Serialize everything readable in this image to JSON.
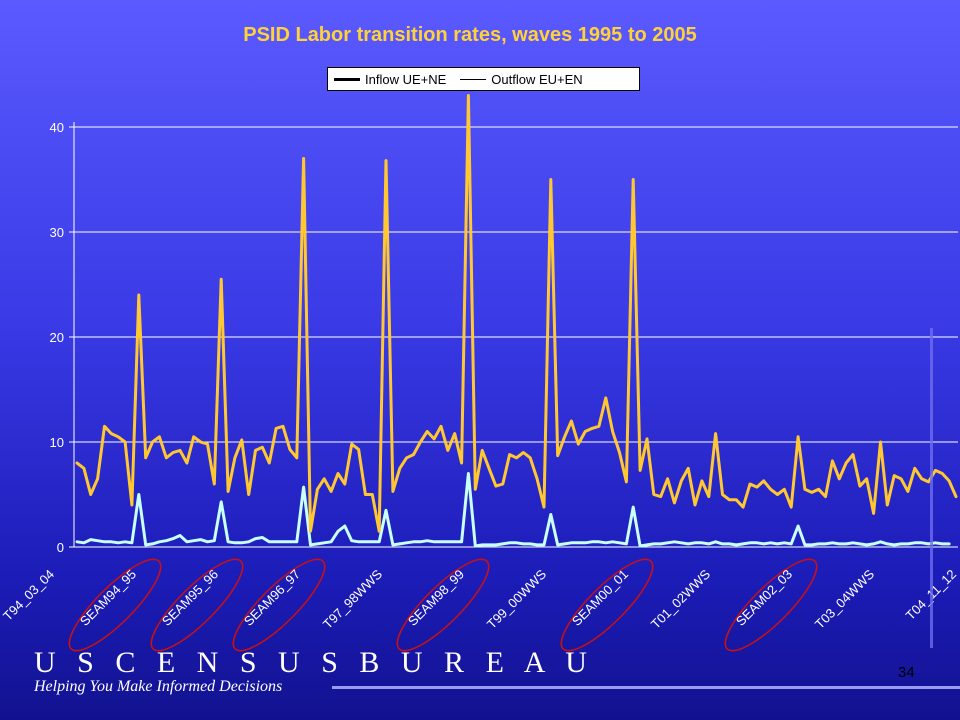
{
  "slide": {
    "logo": "U S C E N S U S B U R E A U",
    "tagline": "Helping You Make Informed Decisions",
    "page_number": "34"
  },
  "colors": {
    "inflow": "#ffc832",
    "outflow": "#c8ffff",
    "grid": "#ffffff",
    "title": "#ffd23a",
    "highlight_ellipse": "#cc1010"
  },
  "chart_data": {
    "type": "line",
    "title": "PSID Labor transition rates, waves 1995 to 2005",
    "xlabel": "",
    "ylabel": "",
    "ylim": [
      0,
      40
    ],
    "yticks": [
      0,
      10,
      20,
      30,
      40
    ],
    "grid": true,
    "legend_position": "top-center",
    "x_tick_labels": [
      "T94_03_04",
      "SEAM94_95",
      "SEAM95_96",
      "SEAM96_97",
      "T97_98WWS",
      "SEAM98_99",
      "T99_00WWS",
      "SEAM00_01",
      "T01_02WWS",
      "SEAM02_03",
      "T03_04WWS",
      "T04_11_12"
    ],
    "highlighted_labels": [
      "SEAM94_95",
      "SEAM95_96",
      "SEAM96_97",
      "SEAM98_99",
      "SEAM00_01",
      "SEAM02_03"
    ],
    "series": [
      {
        "name": "Inflow UE+NE",
        "values": [
          8,
          7.5,
          5,
          6.5,
          11.5,
          10.8,
          10.5,
          10,
          4,
          24,
          8.5,
          10,
          10.5,
          8.5,
          9,
          9.2,
          8,
          10.5,
          10,
          9.8,
          6,
          25.5,
          5.3,
          8.5,
          10.2,
          5,
          9.2,
          9.5,
          8,
          11.3,
          11.5,
          9.3,
          8.5,
          37,
          1.5,
          5.5,
          6.5,
          5.3,
          7,
          6,
          9.8,
          9.3,
          5,
          5,
          1.5,
          36.8,
          5.3,
          7.5,
          8.5,
          8.8,
          10,
          11,
          10.3,
          11.5,
          9.2,
          10.8,
          8,
          43,
          5.5,
          9.2,
          7.5,
          5.8,
          6,
          8.8,
          8.5,
          9,
          8.5,
          6.5,
          3.8,
          35,
          8.7,
          10.5,
          12,
          9.8,
          11,
          11.3,
          11.5,
          14.2,
          11,
          9,
          6.2,
          35,
          7.3,
          10.3,
          5,
          4.8,
          6.5,
          4.2,
          6.3,
          7.5,
          4,
          6.3,
          4.8,
          10.8,
          5,
          4.5,
          4.5,
          3.8,
          6,
          5.7,
          6.3,
          5.5,
          5,
          5.5,
          3.8,
          10.5,
          5.5,
          5.2,
          5.5,
          4.8,
          8.2,
          6.5,
          8,
          8.8,
          5.8,
          6.5,
          3.2,
          10,
          4,
          6.8,
          6.5,
          5.3,
          7.5,
          6.5,
          6.2,
          7.3,
          7,
          6.3,
          4.8
        ],
        "color": "#ffc832"
      },
      {
        "name": "Outflow EU+EN",
        "values": [
          0.5,
          0.4,
          0.7,
          0.6,
          0.5,
          0.5,
          0.4,
          0.5,
          0.4,
          5,
          0.2,
          0.3,
          0.5,
          0.6,
          0.8,
          1.1,
          0.5,
          0.6,
          0.7,
          0.5,
          0.6,
          4.3,
          0.5,
          0.4,
          0.4,
          0.5,
          0.8,
          0.9,
          0.5,
          0.5,
          0.5,
          0.5,
          0.5,
          5.7,
          0.2,
          0.3,
          0.4,
          0.5,
          1.5,
          2,
          0.6,
          0.5,
          0.5,
          0.5,
          0.5,
          3.5,
          0.2,
          0.3,
          0.4,
          0.5,
          0.5,
          0.6,
          0.5,
          0.5,
          0.5,
          0.5,
          0.5,
          7,
          0.1,
          0.2,
          0.2,
          0.2,
          0.3,
          0.4,
          0.4,
          0.3,
          0.3,
          0.2,
          0.2,
          3.1,
          0.2,
          0.3,
          0.4,
          0.4,
          0.4,
          0.5,
          0.5,
          0.4,
          0.5,
          0.4,
          0.3,
          3.8,
          0.1,
          0.2,
          0.3,
          0.3,
          0.4,
          0.5,
          0.4,
          0.3,
          0.4,
          0.4,
          0.3,
          0.5,
          0.3,
          0.3,
          0.2,
          0.3,
          0.4,
          0.4,
          0.3,
          0.4,
          0.3,
          0.4,
          0.3,
          2,
          0.2,
          0.2,
          0.3,
          0.3,
          0.4,
          0.3,
          0.3,
          0.4,
          0.3,
          0.2,
          0.3,
          0.5,
          0.3,
          0.2,
          0.3,
          0.3,
          0.4,
          0.4,
          0.3,
          0.4,
          0.3,
          0.3
        ],
        "color": "#c8ffff"
      }
    ]
  }
}
